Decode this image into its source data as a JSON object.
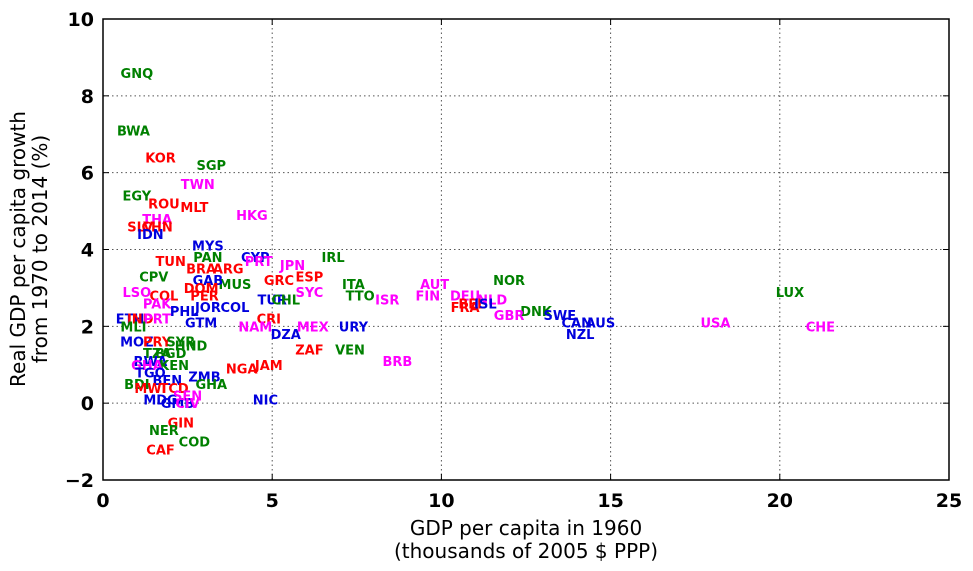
{
  "chart_data": {
    "type": "scatter",
    "title": "",
    "xlabel": [
      "GDP per capita in 1960",
      "(thousands of 2005 $ PPP)"
    ],
    "ylabel": [
      "Real GDP per capita growth",
      "from 1970 to 2014 (%)"
    ],
    "xlim": [
      0,
      25
    ],
    "ylim": [
      -2,
      10
    ],
    "xticks": [
      0,
      5,
      10,
      15,
      20,
      25
    ],
    "yticks": [
      -2,
      0,
      2,
      4,
      6,
      8,
      10
    ],
    "xtick_labels": [
      "0",
      "5",
      "10",
      "15",
      "20",
      "25"
    ],
    "ytick_labels": [
      "−2",
      "0",
      "2",
      "4",
      "6",
      "8",
      "10"
    ],
    "grid": true,
    "colors": {
      "green": "#008000",
      "red": "#ff0000",
      "magenta": "#ff00ff",
      "blue": "#0000dd"
    },
    "points": [
      {
        "label": "GNQ",
        "x": 1.0,
        "y": 8.6,
        "color": "green"
      },
      {
        "label": "BWA",
        "x": 0.9,
        "y": 7.1,
        "color": "green"
      },
      {
        "label": "KOR",
        "x": 1.7,
        "y": 6.4,
        "color": "red"
      },
      {
        "label": "SGP",
        "x": 3.2,
        "y": 6.2,
        "color": "green"
      },
      {
        "label": "TWN",
        "x": 2.8,
        "y": 5.7,
        "color": "magenta"
      },
      {
        "label": "EGY",
        "x": 1.0,
        "y": 5.4,
        "color": "green"
      },
      {
        "label": "ROU",
        "x": 1.8,
        "y": 5.2,
        "color": "red"
      },
      {
        "label": "MLT",
        "x": 2.7,
        "y": 5.1,
        "color": "red"
      },
      {
        "label": "HKG",
        "x": 4.4,
        "y": 4.9,
        "color": "magenta"
      },
      {
        "label": "THA",
        "x": 1.6,
        "y": 4.8,
        "color": "magenta"
      },
      {
        "label": "SLV",
        "x": 1.1,
        "y": 4.6,
        "color": "red"
      },
      {
        "label": "CHN",
        "x": 1.6,
        "y": 4.6,
        "color": "red"
      },
      {
        "label": "IDN",
        "x": 1.4,
        "y": 4.4,
        "color": "blue"
      },
      {
        "label": "MYS",
        "x": 3.1,
        "y": 4.1,
        "color": "blue"
      },
      {
        "label": "PAN",
        "x": 3.1,
        "y": 3.8,
        "color": "green"
      },
      {
        "label": "CYP",
        "x": 4.5,
        "y": 3.8,
        "color": "blue"
      },
      {
        "label": "IRL",
        "x": 6.8,
        "y": 3.8,
        "color": "green"
      },
      {
        "label": "PRT",
        "x": 4.6,
        "y": 3.7,
        "color": "magenta"
      },
      {
        "label": "JPN",
        "x": 5.6,
        "y": 3.6,
        "color": "magenta"
      },
      {
        "label": "TUN",
        "x": 2.0,
        "y": 3.7,
        "color": "red"
      },
      {
        "label": "BRA",
        "x": 2.9,
        "y": 3.5,
        "color": "red"
      },
      {
        "label": "ARG",
        "x": 3.7,
        "y": 3.5,
        "color": "red"
      },
      {
        "label": "ESP",
        "x": 6.1,
        "y": 3.3,
        "color": "red"
      },
      {
        "label": "GRC",
        "x": 5.2,
        "y": 3.2,
        "color": "red"
      },
      {
        "label": "CPV",
        "x": 1.5,
        "y": 3.3,
        "color": "green"
      },
      {
        "label": "MUS",
        "x": 3.9,
        "y": 3.1,
        "color": "green"
      },
      {
        "label": "GAB",
        "x": 3.1,
        "y": 3.2,
        "color": "blue"
      },
      {
        "label": "DOM",
        "x": 2.9,
        "y": 3.0,
        "color": "red"
      },
      {
        "label": "ITA",
        "x": 7.4,
        "y": 3.1,
        "color": "green"
      },
      {
        "label": "NOR",
        "x": 12.0,
        "y": 3.2,
        "color": "green"
      },
      {
        "label": "AUT",
        "x": 9.8,
        "y": 3.1,
        "color": "magenta"
      },
      {
        "label": "LUX",
        "x": 20.3,
        "y": 2.9,
        "color": "green"
      },
      {
        "label": "LSO",
        "x": 1.0,
        "y": 2.9,
        "color": "magenta"
      },
      {
        "label": "COL",
        "x": 1.8,
        "y": 2.8,
        "color": "red"
      },
      {
        "label": "PER",
        "x": 3.0,
        "y": 2.8,
        "color": "red"
      },
      {
        "label": "SYC",
        "x": 6.1,
        "y": 2.9,
        "color": "magenta"
      },
      {
        "label": "TTO",
        "x": 7.6,
        "y": 2.8,
        "color": "green"
      },
      {
        "label": "TUR",
        "x": 5.0,
        "y": 2.7,
        "color": "blue"
      },
      {
        "label": "CHL",
        "x": 5.4,
        "y": 2.7,
        "color": "green"
      },
      {
        "label": "FIN",
        "x": 9.6,
        "y": 2.8,
        "color": "magenta"
      },
      {
        "label": "DEU",
        "x": 10.7,
        "y": 2.8,
        "color": "magenta"
      },
      {
        "label": "NLD",
        "x": 11.5,
        "y": 2.7,
        "color": "magenta"
      },
      {
        "label": "BEL",
        "x": 10.9,
        "y": 2.6,
        "color": "red"
      },
      {
        "label": "FRA",
        "x": 10.7,
        "y": 2.5,
        "color": "red"
      },
      {
        "label": "ISL",
        "x": 11.3,
        "y": 2.6,
        "color": "blue"
      },
      {
        "label": "ISR",
        "x": 8.4,
        "y": 2.7,
        "color": "magenta"
      },
      {
        "label": "PAK",
        "x": 1.6,
        "y": 2.6,
        "color": "magenta"
      },
      {
        "label": "PHL",
        "x": 2.4,
        "y": 2.4,
        "color": "blue"
      },
      {
        "label": "JOR",
        "x": 3.1,
        "y": 2.5,
        "color": "blue"
      },
      {
        "label": "COL",
        "x": 3.9,
        "y": 2.5,
        "color": "blue"
      },
      {
        "label": "DNK",
        "x": 12.8,
        "y": 2.4,
        "color": "green"
      },
      {
        "label": "GBR",
        "x": 12.0,
        "y": 2.3,
        "color": "magenta"
      },
      {
        "label": "SWE",
        "x": 13.5,
        "y": 2.3,
        "color": "blue"
      },
      {
        "label": "CAN",
        "x": 14.0,
        "y": 2.1,
        "color": "blue"
      },
      {
        "label": "AUS",
        "x": 14.7,
        "y": 2.1,
        "color": "blue"
      },
      {
        "label": "USA",
        "x": 18.1,
        "y": 2.1,
        "color": "magenta"
      },
      {
        "label": "CHE",
        "x": 21.2,
        "y": 2.0,
        "color": "magenta"
      },
      {
        "label": "NZL",
        "x": 14.1,
        "y": 1.8,
        "color": "blue"
      },
      {
        "label": "ETH",
        "x": 0.8,
        "y": 2.2,
        "color": "blue"
      },
      {
        "label": "IND",
        "x": 1.1,
        "y": 2.2,
        "color": "red"
      },
      {
        "label": "PRT",
        "x": 1.6,
        "y": 2.2,
        "color": "magenta"
      },
      {
        "label": "MLI",
        "x": 0.9,
        "y": 2.0,
        "color": "green"
      },
      {
        "label": "GTM",
        "x": 2.9,
        "y": 2.1,
        "color": "blue"
      },
      {
        "label": "CRI",
        "x": 4.9,
        "y": 2.2,
        "color": "red"
      },
      {
        "label": "NAM",
        "x": 4.5,
        "y": 2.0,
        "color": "magenta"
      },
      {
        "label": "MEX",
        "x": 6.2,
        "y": 2.0,
        "color": "magenta"
      },
      {
        "label": "URY",
        "x": 7.4,
        "y": 2.0,
        "color": "blue"
      },
      {
        "label": "DZA",
        "x": 5.4,
        "y": 1.8,
        "color": "blue"
      },
      {
        "label": "MOZ",
        "x": 1.0,
        "y": 1.6,
        "color": "blue"
      },
      {
        "label": "PRY",
        "x": 1.6,
        "y": 1.6,
        "color": "red"
      },
      {
        "label": "SYR",
        "x": 2.3,
        "y": 1.6,
        "color": "green"
      },
      {
        "label": "HND",
        "x": 2.6,
        "y": 1.5,
        "color": "green"
      },
      {
        "label": "ZAF",
        "x": 6.1,
        "y": 1.4,
        "color": "red"
      },
      {
        "label": "VEN",
        "x": 7.3,
        "y": 1.4,
        "color": "green"
      },
      {
        "label": "TZA",
        "x": 1.6,
        "y": 1.3,
        "color": "green"
      },
      {
        "label": "BGD",
        "x": 2.0,
        "y": 1.3,
        "color": "green"
      },
      {
        "label": "RWA",
        "x": 1.4,
        "y": 1.1,
        "color": "blue"
      },
      {
        "label": "KEN",
        "x": 2.1,
        "y": 1.0,
        "color": "green"
      },
      {
        "label": "BRB",
        "x": 8.7,
        "y": 1.1,
        "color": "magenta"
      },
      {
        "label": "JAM",
        "x": 4.9,
        "y": 1.0,
        "color": "red"
      },
      {
        "label": "NGA",
        "x": 4.1,
        "y": 0.9,
        "color": "red"
      },
      {
        "label": "GHA",
        "x": 1.3,
        "y": 1.0,
        "color": "magenta"
      },
      {
        "label": "TGO",
        "x": 1.4,
        "y": 0.8,
        "color": "blue"
      },
      {
        "label": "ZMB",
        "x": 3.0,
        "y": 0.7,
        "color": "blue"
      },
      {
        "label": "BEN",
        "x": 1.9,
        "y": 0.6,
        "color": "blue"
      },
      {
        "label": "GHA",
        "x": 3.2,
        "y": 0.5,
        "color": "green"
      },
      {
        "label": "BDI",
        "x": 1.0,
        "y": 0.5,
        "color": "green"
      },
      {
        "label": "MWI",
        "x": 1.4,
        "y": 0.4,
        "color": "red"
      },
      {
        "label": "TCD",
        "x": 2.1,
        "y": 0.4,
        "color": "red"
      },
      {
        "label": "MDG",
        "x": 1.7,
        "y": 0.1,
        "color": "blue"
      },
      {
        "label": "SEN",
        "x": 2.5,
        "y": 0.2,
        "color": "magenta"
      },
      {
        "label": "NIC",
        "x": 4.8,
        "y": 0.1,
        "color": "blue"
      },
      {
        "label": "GMB",
        "x": 2.2,
        "y": 0.0,
        "color": "blue"
      },
      {
        "label": "CIV",
        "x": 2.5,
        "y": 0.0,
        "color": "magenta"
      },
      {
        "label": "GIN",
        "x": 2.3,
        "y": -0.5,
        "color": "red"
      },
      {
        "label": "NER",
        "x": 1.8,
        "y": -0.7,
        "color": "green"
      },
      {
        "label": "COD",
        "x": 2.7,
        "y": -1.0,
        "color": "green"
      },
      {
        "label": "CAF",
        "x": 1.7,
        "y": -1.2,
        "color": "red"
      }
    ]
  }
}
